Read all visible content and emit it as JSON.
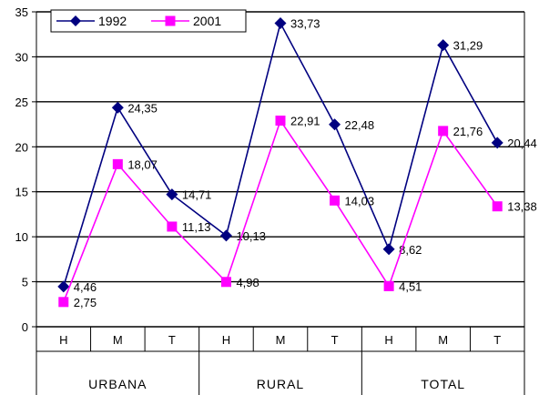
{
  "chart_data": {
    "type": "line",
    "categories": [
      "H",
      "M",
      "T",
      "H",
      "M",
      "T",
      "H",
      "M",
      "T"
    ],
    "groups": [
      "URBANA",
      "RURAL",
      "TOTAL"
    ],
    "series": [
      {
        "name": "1992",
        "values": [
          4.46,
          24.35,
          14.71,
          10.13,
          33.73,
          22.48,
          8.62,
          31.29,
          20.44
        ],
        "labels": [
          "4,46",
          "24,35",
          "14,71",
          "10,13",
          "33,73",
          "22,48",
          "8,62",
          "31,29",
          "20,44"
        ],
        "color": "#000080",
        "marker": "diamond"
      },
      {
        "name": "2001",
        "values": [
          2.75,
          18.07,
          11.13,
          4.98,
          22.91,
          14.03,
          4.51,
          21.76,
          13.38
        ],
        "labels": [
          "2,75",
          "18,07",
          "11,13",
          "4,98",
          "22,91",
          "14,03",
          "4,51",
          "21,76",
          "13,38"
        ],
        "color": "#FF00FF",
        "marker": "square"
      }
    ],
    "yticks": [
      "0",
      "5",
      "10",
      "15",
      "20",
      "25",
      "30",
      "35"
    ],
    "ylim": [
      0,
      35
    ],
    "grid": true,
    "legend": "top-left"
  }
}
